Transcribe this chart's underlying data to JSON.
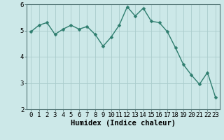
{
  "x": [
    0,
    1,
    2,
    3,
    4,
    5,
    6,
    7,
    8,
    9,
    10,
    11,
    12,
    13,
    14,
    15,
    16,
    17,
    18,
    19,
    20,
    21,
    22,
    23
  ],
  "y": [
    4.95,
    5.2,
    5.3,
    4.85,
    5.05,
    5.2,
    5.05,
    5.15,
    4.85,
    4.4,
    4.75,
    5.2,
    5.9,
    5.55,
    5.85,
    5.35,
    5.3,
    4.95,
    4.35,
    3.7,
    3.3,
    2.95,
    3.4,
    2.45
  ],
  "line_color": "#2e7d6e",
  "marker": "D",
  "marker_size": 2.5,
  "bg_color": "#cce8e8",
  "grid_color": "#aacccc",
  "xlabel": "Humidex (Indice chaleur)",
  "ylim": [
    2,
    6
  ],
  "xlim": [
    -0.5,
    23.5
  ],
  "yticks": [
    2,
    3,
    4,
    5,
    6
  ],
  "xticks": [
    0,
    1,
    2,
    3,
    4,
    5,
    6,
    7,
    8,
    9,
    10,
    11,
    12,
    13,
    14,
    15,
    16,
    17,
    18,
    19,
    20,
    21,
    22,
    23
  ],
  "xlabel_fontsize": 7.5,
  "tick_fontsize": 6.5,
  "line_width": 1.0
}
